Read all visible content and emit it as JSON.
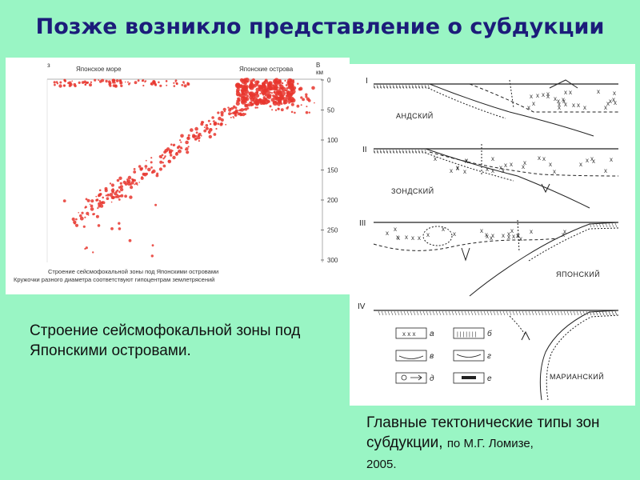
{
  "slide": {
    "title": "Позже возникло представление о субдукции"
  },
  "seismic": {
    "corner_label": "з",
    "left_label": "Японское море",
    "right_label": "Японские острова",
    "axis_unit_top": "В",
    "axis_unit": "км",
    "depth_ticks": [
      "0",
      "50",
      "100",
      "150",
      "200",
      "250",
      "300"
    ],
    "inner_caption_line1": "Строение сейсмофокальной зоны под Японскими островами",
    "inner_caption_line2": "Кружочки разного диаметра соответствуют гипоцентрам землетрясений",
    "point_color": "#e8362e"
  },
  "tectonic": {
    "rows": [
      {
        "numeral": "I",
        "label": "АНДСКИЙ"
      },
      {
        "numeral": "II",
        "label": "ЗОНДСКИЙ"
      },
      {
        "numeral": "III",
        "label": "ЯПОНСКИЙ"
      },
      {
        "numeral": "IV",
        "label": "МАРИАНСКИЙ"
      }
    ],
    "legend": [
      "а",
      "б",
      "в",
      "г",
      "д",
      "е"
    ]
  },
  "captions": {
    "seismic": "Строение сейсмофокальной зоны под Японскими островами.",
    "tectonic_main": "Главные тектонические типы зон субдукции,",
    "tectonic_ref": "по М.Г. Ломизе,",
    "tectonic_year": "2005."
  }
}
